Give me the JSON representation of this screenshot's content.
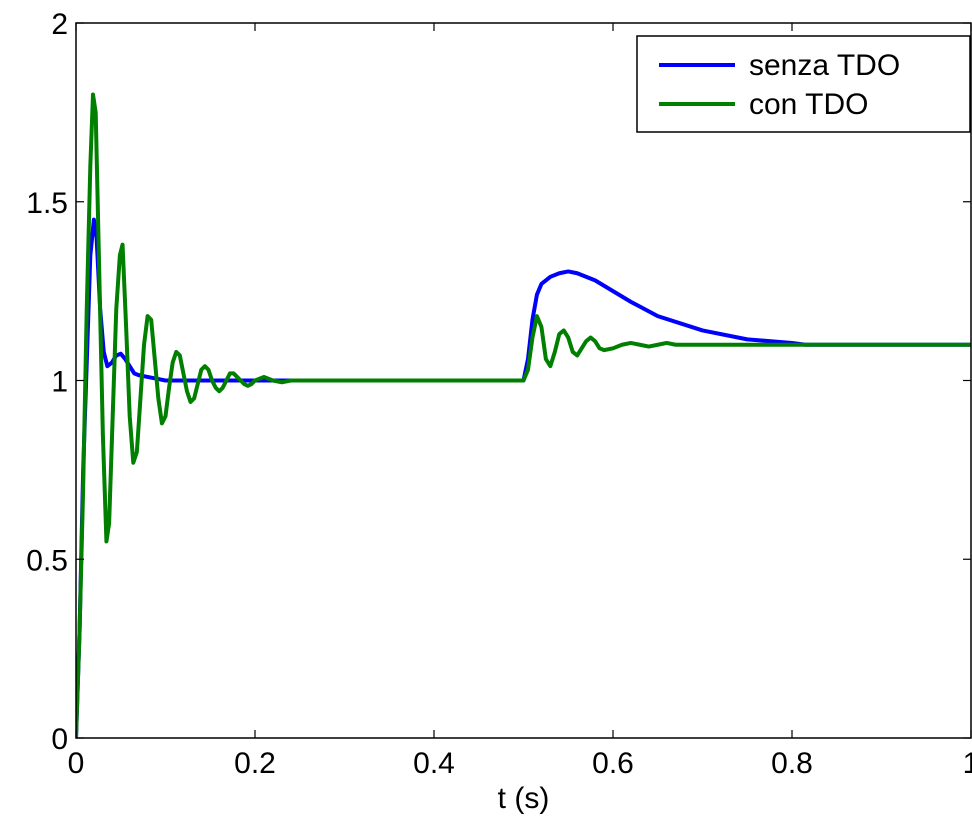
{
  "chart_data": {
    "type": "line",
    "title": "",
    "xlabel": "t (s)",
    "ylabel": "",
    "xlim": [
      0,
      1
    ],
    "ylim": [
      0,
      2
    ],
    "x_ticks": [
      0,
      0.2,
      0.4,
      0.6,
      0.8,
      1
    ],
    "x_tick_labels": [
      "0",
      "0.2",
      "0.4",
      "0.6",
      "0.8",
      "1"
    ],
    "y_ticks": [
      0,
      0.5,
      1,
      1.5,
      2
    ],
    "y_tick_labels": [
      "0",
      "0.5",
      "1",
      "1.5",
      "2"
    ],
    "grid": false,
    "legend_position": "top-right",
    "series": [
      {
        "name": "senza TDO",
        "color": "#0000ff",
        "x": [
          0,
          0.004,
          0.008,
          0.012,
          0.016,
          0.02,
          0.023,
          0.027,
          0.031,
          0.035,
          0.04,
          0.045,
          0.05,
          0.055,
          0.06,
          0.065,
          0.07,
          0.08,
          0.09,
          0.1,
          0.12,
          0.15,
          0.2,
          0.3,
          0.4,
          0.5,
          0.505,
          0.51,
          0.515,
          0.52,
          0.53,
          0.54,
          0.55,
          0.56,
          0.58,
          0.6,
          0.62,
          0.65,
          0.7,
          0.75,
          0.8,
          0.815,
          0.9,
          1
        ],
        "y": [
          0,
          0.3,
          0.75,
          1.05,
          1.35,
          1.45,
          1.4,
          1.2,
          1.08,
          1.04,
          1.05,
          1.07,
          1.075,
          1.06,
          1.04,
          1.02,
          1.015,
          1.01,
          1.005,
          1.0,
          1.0,
          1.0,
          1.0,
          1.0,
          1.0,
          1.0,
          1.06,
          1.17,
          1.24,
          1.27,
          1.29,
          1.3,
          1.305,
          1.3,
          1.28,
          1.25,
          1.22,
          1.18,
          1.14,
          1.115,
          1.105,
          1.1,
          1.1,
          1.1
        ]
      },
      {
        "name": "con TDO",
        "color": "#007f00",
        "x": [
          0,
          0.004,
          0.008,
          0.012,
          0.016,
          0.019,
          0.022,
          0.026,
          0.03,
          0.034,
          0.037,
          0.041,
          0.045,
          0.049,
          0.052,
          0.056,
          0.06,
          0.064,
          0.068,
          0.072,
          0.076,
          0.08,
          0.084,
          0.088,
          0.092,
          0.096,
          0.1,
          0.104,
          0.108,
          0.112,
          0.116,
          0.12,
          0.124,
          0.128,
          0.132,
          0.136,
          0.14,
          0.144,
          0.148,
          0.152,
          0.156,
          0.16,
          0.164,
          0.168,
          0.172,
          0.176,
          0.18,
          0.184,
          0.188,
          0.192,
          0.196,
          0.2,
          0.21,
          0.22,
          0.23,
          0.24,
          0.25,
          0.3,
          0.4,
          0.5,
          0.505,
          0.51,
          0.515,
          0.52,
          0.525,
          0.53,
          0.535,
          0.54,
          0.545,
          0.55,
          0.555,
          0.56,
          0.565,
          0.57,
          0.575,
          0.58,
          0.585,
          0.59,
          0.6,
          0.61,
          0.62,
          0.63,
          0.64,
          0.65,
          0.66,
          0.67,
          0.7,
          0.8,
          0.9,
          1
        ],
        "y": [
          0,
          0.3,
          0.7,
          1.2,
          1.6,
          1.8,
          1.75,
          1.3,
          0.85,
          0.55,
          0.6,
          0.9,
          1.2,
          1.35,
          1.38,
          1.15,
          0.9,
          0.77,
          0.8,
          0.95,
          1.1,
          1.18,
          1.17,
          1.06,
          0.95,
          0.88,
          0.9,
          0.98,
          1.05,
          1.08,
          1.07,
          1.02,
          0.97,
          0.94,
          0.95,
          0.99,
          1.03,
          1.04,
          1.03,
          1.0,
          0.98,
          0.97,
          0.98,
          1.0,
          1.02,
          1.02,
          1.01,
          1.0,
          0.99,
          0.985,
          0.99,
          1.0,
          1.01,
          1.0,
          0.995,
          1.0,
          1.0,
          1.0,
          1.0,
          1.0,
          1.03,
          1.12,
          1.18,
          1.15,
          1.06,
          1.04,
          1.08,
          1.13,
          1.14,
          1.12,
          1.08,
          1.07,
          1.09,
          1.11,
          1.12,
          1.11,
          1.09,
          1.085,
          1.09,
          1.1,
          1.105,
          1.1,
          1.095,
          1.1,
          1.105,
          1.1,
          1.1,
          1.1,
          1.1,
          1.1
        ]
      }
    ]
  }
}
